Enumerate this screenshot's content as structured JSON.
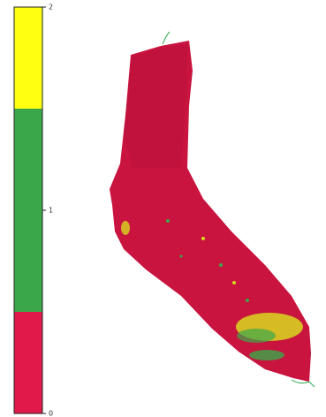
{
  "colorbar": {
    "lim": [
      0,
      2
    ],
    "ticks": [
      0,
      1,
      2
    ],
    "segments": [
      {
        "from": 0,
        "to": 0.5,
        "color": "#e0194a"
      },
      {
        "from": 0.5,
        "to": 1.5,
        "color": "#3aa84a"
      },
      {
        "from": 1.5,
        "to": 2,
        "color": "#ffff12"
      }
    ]
  }
}
